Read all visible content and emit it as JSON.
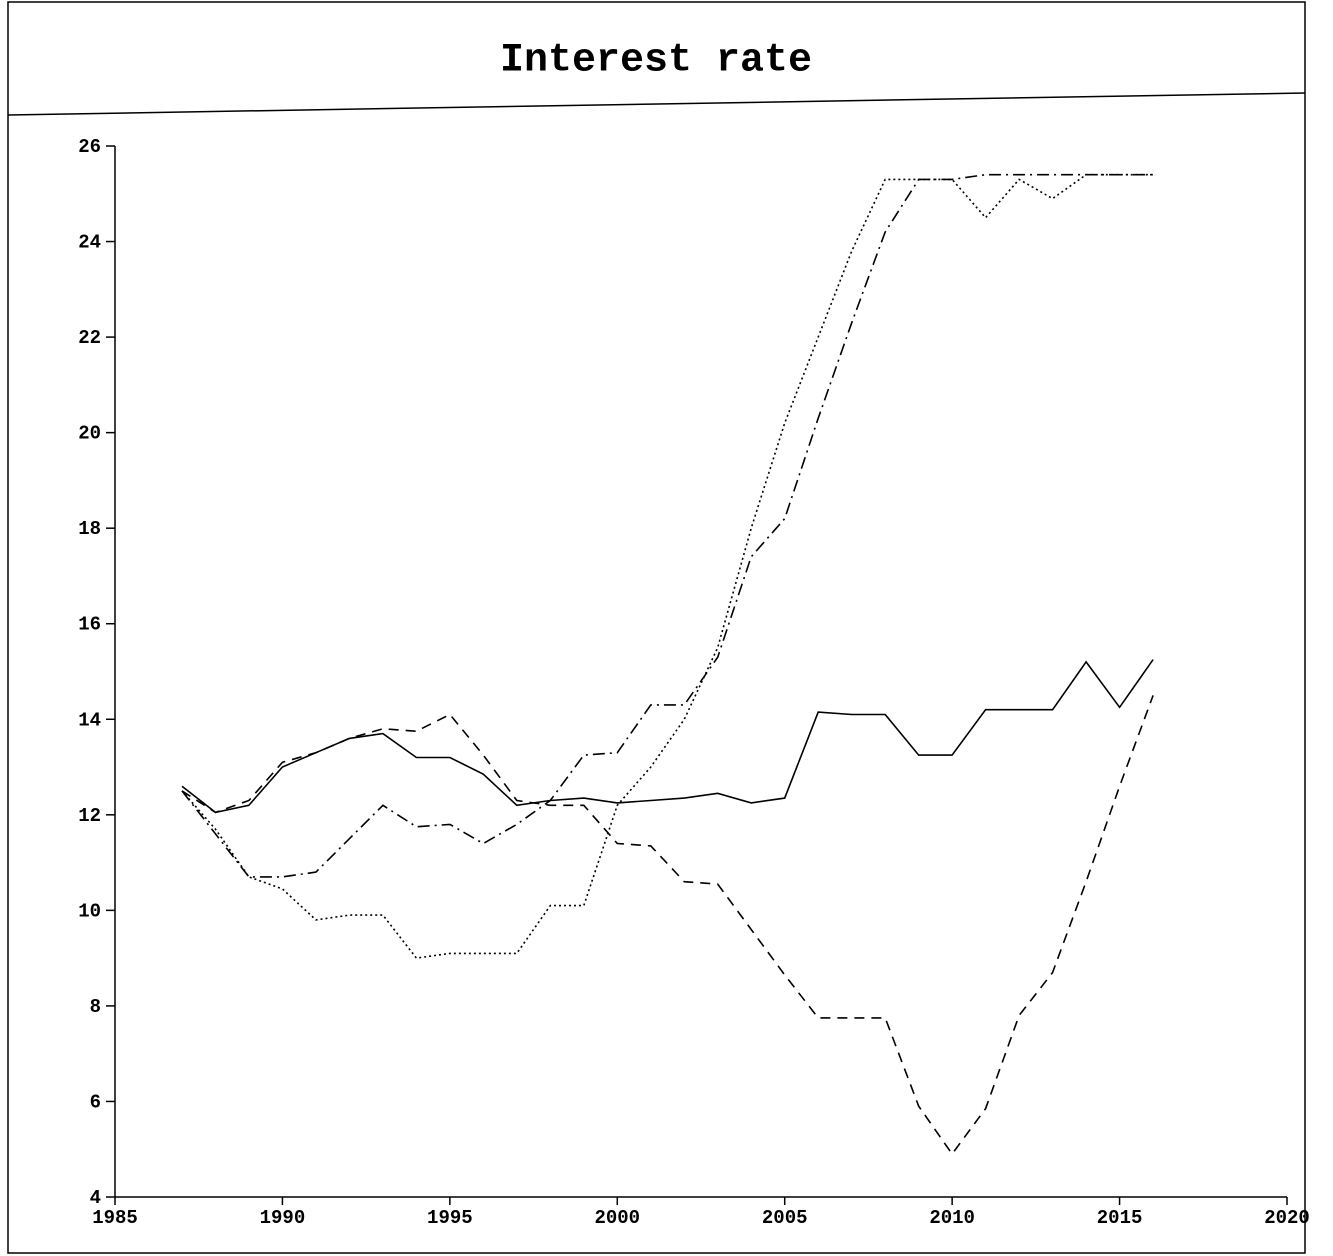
{
  "chart_data": {
    "type": "line",
    "title": "Interest rate",
    "x": [
      1987,
      1988,
      1989,
      1990,
      1991,
      1992,
      1993,
      1994,
      1995,
      1996,
      1997,
      1998,
      1999,
      2000,
      2001,
      2002,
      2003,
      2004,
      2005,
      2006,
      2007,
      2008,
      2009,
      2010,
      2011,
      2012,
      2013,
      2014,
      2015,
      2016
    ],
    "series": [
      {
        "color": "#000000",
        "dash": "solid",
        "values": [
          12.6,
          12.05,
          12.2,
          13.0,
          13.3,
          13.6,
          13.7,
          13.2,
          13.2,
          12.85,
          12.2,
          12.3,
          12.35,
          12.25,
          12.3,
          12.35,
          12.45,
          12.25,
          12.35,
          14.15,
          14.1,
          14.1,
          13.25,
          13.25,
          14.2,
          14.2,
          14.2,
          15.2,
          14.25,
          15.25
        ]
      },
      {
        "color": "#000000",
        "dash": "dashed",
        "values": [
          12.5,
          12.05,
          12.3,
          13.1,
          13.3,
          13.6,
          13.8,
          13.75,
          14.1,
          13.25,
          12.3,
          12.2,
          12.2,
          11.4,
          11.35,
          10.6,
          10.55,
          9.6,
          8.65,
          7.75,
          7.75,
          7.75,
          5.9,
          4.9,
          5.85,
          7.8,
          8.7,
          10.6,
          12.6,
          14.5
        ]
      },
      {
        "color": "#000000",
        "dash": "dotted",
        "values": [
          12.5,
          11.7,
          10.7,
          10.45,
          9.8,
          9.9,
          9.9,
          9.0,
          9.1,
          9.1,
          9.1,
          10.1,
          10.1,
          12.2,
          13.0,
          14.0,
          15.5,
          18.0,
          20.2,
          22.0,
          23.8,
          25.3,
          25.3,
          25.3,
          24.5,
          25.3,
          24.9,
          25.4,
          25.4,
          25.4
        ]
      },
      {
        "color": "#000000",
        "dash": "dashdot",
        "values": [
          12.5,
          11.6,
          10.7,
          10.7,
          10.8,
          11.5,
          12.2,
          11.75,
          11.8,
          11.4,
          11.8,
          12.3,
          13.25,
          13.3,
          14.3,
          14.3,
          15.3,
          17.4,
          18.2,
          20.3,
          22.3,
          24.2,
          25.3,
          25.3,
          25.4,
          25.4,
          25.4,
          25.4,
          25.4,
          25.4
        ]
      }
    ],
    "xlim": [
      1985,
      2020
    ],
    "xticks": [
      1985,
      1990,
      1995,
      2000,
      2005,
      2010,
      2015,
      2020
    ],
    "ylim": [
      4,
      26
    ],
    "yticks": [
      4,
      6,
      8,
      10,
      12,
      14,
      16,
      18,
      20,
      22,
      24,
      26
    ],
    "grid": false
  }
}
